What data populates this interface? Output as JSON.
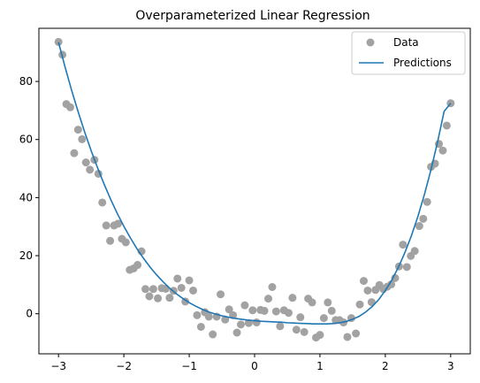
{
  "chart_data": {
    "type": "scatter",
    "title": "Overparameterized Linear Regression",
    "xlabel": "",
    "ylabel": "",
    "xlim": [
      -3.3,
      3.3
    ],
    "ylim": [
      -13.8,
      98.3
    ],
    "xticks": [
      -3,
      -2,
      -1,
      0,
      1,
      2,
      3
    ],
    "xtick_labels": [
      "−3",
      "−2",
      "−1",
      "0",
      "1",
      "2",
      "3"
    ],
    "yticks": [
      0,
      20,
      40,
      60,
      80
    ],
    "ytick_labels": [
      "0",
      "20",
      "40",
      "60",
      "80"
    ],
    "grid": false,
    "legend": "top-right",
    "series": [
      {
        "name": "Data",
        "kind": "scatter",
        "color": "#a2a2a2",
        "points": [
          [
            -3.0,
            93.6
          ],
          [
            -2.94,
            89.2
          ],
          [
            -2.88,
            72.2
          ],
          [
            -2.82,
            71.1
          ],
          [
            -2.76,
            55.3
          ],
          [
            -2.7,
            63.4
          ],
          [
            -2.64,
            60.1
          ],
          [
            -2.58,
            52.1
          ],
          [
            -2.52,
            49.6
          ],
          [
            -2.45,
            53.0
          ],
          [
            -2.39,
            48.2
          ],
          [
            -2.33,
            38.3
          ],
          [
            -2.27,
            30.4
          ],
          [
            -2.21,
            25.1
          ],
          [
            -2.15,
            30.4
          ],
          [
            -2.09,
            31.0
          ],
          [
            -2.03,
            25.8
          ],
          [
            -1.97,
            24.6
          ],
          [
            -1.91,
            15.1
          ],
          [
            -1.85,
            15.6
          ],
          [
            -1.79,
            16.8
          ],
          [
            -1.73,
            21.5
          ],
          [
            -1.67,
            8.5
          ],
          [
            -1.61,
            6.0
          ],
          [
            -1.55,
            8.5
          ],
          [
            -1.48,
            5.3
          ],
          [
            -1.42,
            8.8
          ],
          [
            -1.36,
            8.6
          ],
          [
            -1.3,
            5.5
          ],
          [
            -1.24,
            7.9
          ],
          [
            -1.18,
            12.1
          ],
          [
            -1.12,
            8.9
          ],
          [
            -1.06,
            4.2
          ],
          [
            -1.0,
            11.5
          ],
          [
            -0.94,
            8.0
          ],
          [
            -0.88,
            -0.5
          ],
          [
            -0.82,
            -4.5
          ],
          [
            -0.76,
            0.5
          ],
          [
            -0.7,
            -1.0
          ],
          [
            -0.64,
            -7.1
          ],
          [
            -0.58,
            -1.0
          ],
          [
            -0.52,
            6.7
          ],
          [
            -0.45,
            -2.0
          ],
          [
            -0.39,
            1.5
          ],
          [
            -0.33,
            -0.5
          ],
          [
            -0.27,
            -6.5
          ],
          [
            -0.21,
            -3.7
          ],
          [
            -0.15,
            2.9
          ],
          [
            -0.09,
            -3.2
          ],
          [
            -0.03,
            1.2
          ],
          [
            0.03,
            -3.0
          ],
          [
            0.09,
            1.3
          ],
          [
            0.15,
            1.0
          ],
          [
            0.21,
            5.2
          ],
          [
            0.27,
            9.2
          ],
          [
            0.33,
            0.8
          ],
          [
            0.39,
            -4.3
          ],
          [
            0.45,
            1.2
          ],
          [
            0.52,
            0.3
          ],
          [
            0.58,
            5.5
          ],
          [
            0.64,
            -5.5
          ],
          [
            0.7,
            -1.2
          ],
          [
            0.76,
            -6.3
          ],
          [
            0.82,
            5.2
          ],
          [
            0.88,
            3.9
          ],
          [
            0.94,
            -8.2
          ],
          [
            1.0,
            -7.3
          ],
          [
            1.06,
            -1.5
          ],
          [
            1.12,
            3.9
          ],
          [
            1.18,
            1.0
          ],
          [
            1.24,
            -2.2
          ],
          [
            1.3,
            -2.2
          ],
          [
            1.36,
            -3.0
          ],
          [
            1.42,
            -8.0
          ],
          [
            1.48,
            -1.5
          ],
          [
            1.55,
            -6.8
          ],
          [
            1.61,
            3.2
          ],
          [
            1.67,
            11.3
          ],
          [
            1.73,
            8.0
          ],
          [
            1.79,
            4.0
          ],
          [
            1.85,
            8.2
          ],
          [
            1.91,
            9.9
          ],
          [
            1.97,
            8.5
          ],
          [
            2.03,
            9.3
          ],
          [
            2.09,
            10.1
          ],
          [
            2.15,
            12.3
          ],
          [
            2.21,
            16.3
          ],
          [
            2.27,
            23.8
          ],
          [
            2.33,
            16.1
          ],
          [
            2.39,
            19.9
          ],
          [
            2.45,
            21.6
          ],
          [
            2.52,
            30.2
          ],
          [
            2.58,
            32.7
          ],
          [
            2.64,
            38.5
          ],
          [
            2.7,
            50.6
          ],
          [
            2.76,
            51.7
          ],
          [
            2.82,
            58.5
          ],
          [
            2.88,
            56.2
          ],
          [
            2.94,
            64.8
          ],
          [
            3.0,
            72.5
          ]
        ]
      },
      {
        "name": "Predictions",
        "kind": "line",
        "color": "#1f77b4",
        "points": [
          [
            -3.0,
            93.5
          ],
          [
            -2.9,
            85.0
          ],
          [
            -2.8,
            77.0
          ],
          [
            -2.7,
            69.6
          ],
          [
            -2.6,
            62.6
          ],
          [
            -2.5,
            56.1
          ],
          [
            -2.4,
            50.1
          ],
          [
            -2.3,
            44.5
          ],
          [
            -2.2,
            39.3
          ],
          [
            -2.1,
            34.5
          ],
          [
            -2.0,
            30.1
          ],
          [
            -1.9,
            26.1
          ],
          [
            -1.8,
            22.4
          ],
          [
            -1.7,
            19.1
          ],
          [
            -1.6,
            16.1
          ],
          [
            -1.5,
            13.4
          ],
          [
            -1.4,
            11.0
          ],
          [
            -1.3,
            8.8
          ],
          [
            -1.2,
            6.9
          ],
          [
            -1.1,
            5.3
          ],
          [
            -1.0,
            3.8
          ],
          [
            -0.9,
            2.6
          ],
          [
            -0.8,
            1.5
          ],
          [
            -0.7,
            0.6
          ],
          [
            -0.6,
            -0.1
          ],
          [
            -0.5,
            -0.7
          ],
          [
            -0.4,
            -1.2
          ],
          [
            -0.3,
            -1.6
          ],
          [
            -0.2,
            -1.9
          ],
          [
            -0.1,
            -2.2
          ],
          [
            0.0,
            -2.4
          ],
          [
            0.1,
            -2.6
          ],
          [
            0.2,
            -2.7
          ],
          [
            0.3,
            -2.8
          ],
          [
            0.4,
            -2.9
          ],
          [
            0.5,
            -3.1
          ],
          [
            0.6,
            -3.2
          ],
          [
            0.7,
            -3.3
          ],
          [
            0.8,
            -3.4
          ],
          [
            0.9,
            -3.5
          ],
          [
            1.0,
            -3.5
          ],
          [
            1.1,
            -3.5
          ],
          [
            1.2,
            -3.4
          ],
          [
            1.3,
            -3.1
          ],
          [
            1.4,
            -2.7
          ],
          [
            1.5,
            -1.9
          ],
          [
            1.6,
            -0.9
          ],
          [
            1.7,
            0.6
          ],
          [
            1.8,
            2.5
          ],
          [
            1.9,
            4.9
          ],
          [
            2.0,
            8.0
          ],
          [
            2.1,
            11.6
          ],
          [
            2.2,
            16.0
          ],
          [
            2.3,
            21.1
          ],
          [
            2.4,
            26.9
          ],
          [
            2.5,
            33.6
          ],
          [
            2.6,
            41.2
          ],
          [
            2.7,
            49.7
          ],
          [
            2.8,
            59.2
          ],
          [
            2.9,
            69.7
          ],
          [
            3.0,
            72.5
          ]
        ]
      }
    ]
  }
}
